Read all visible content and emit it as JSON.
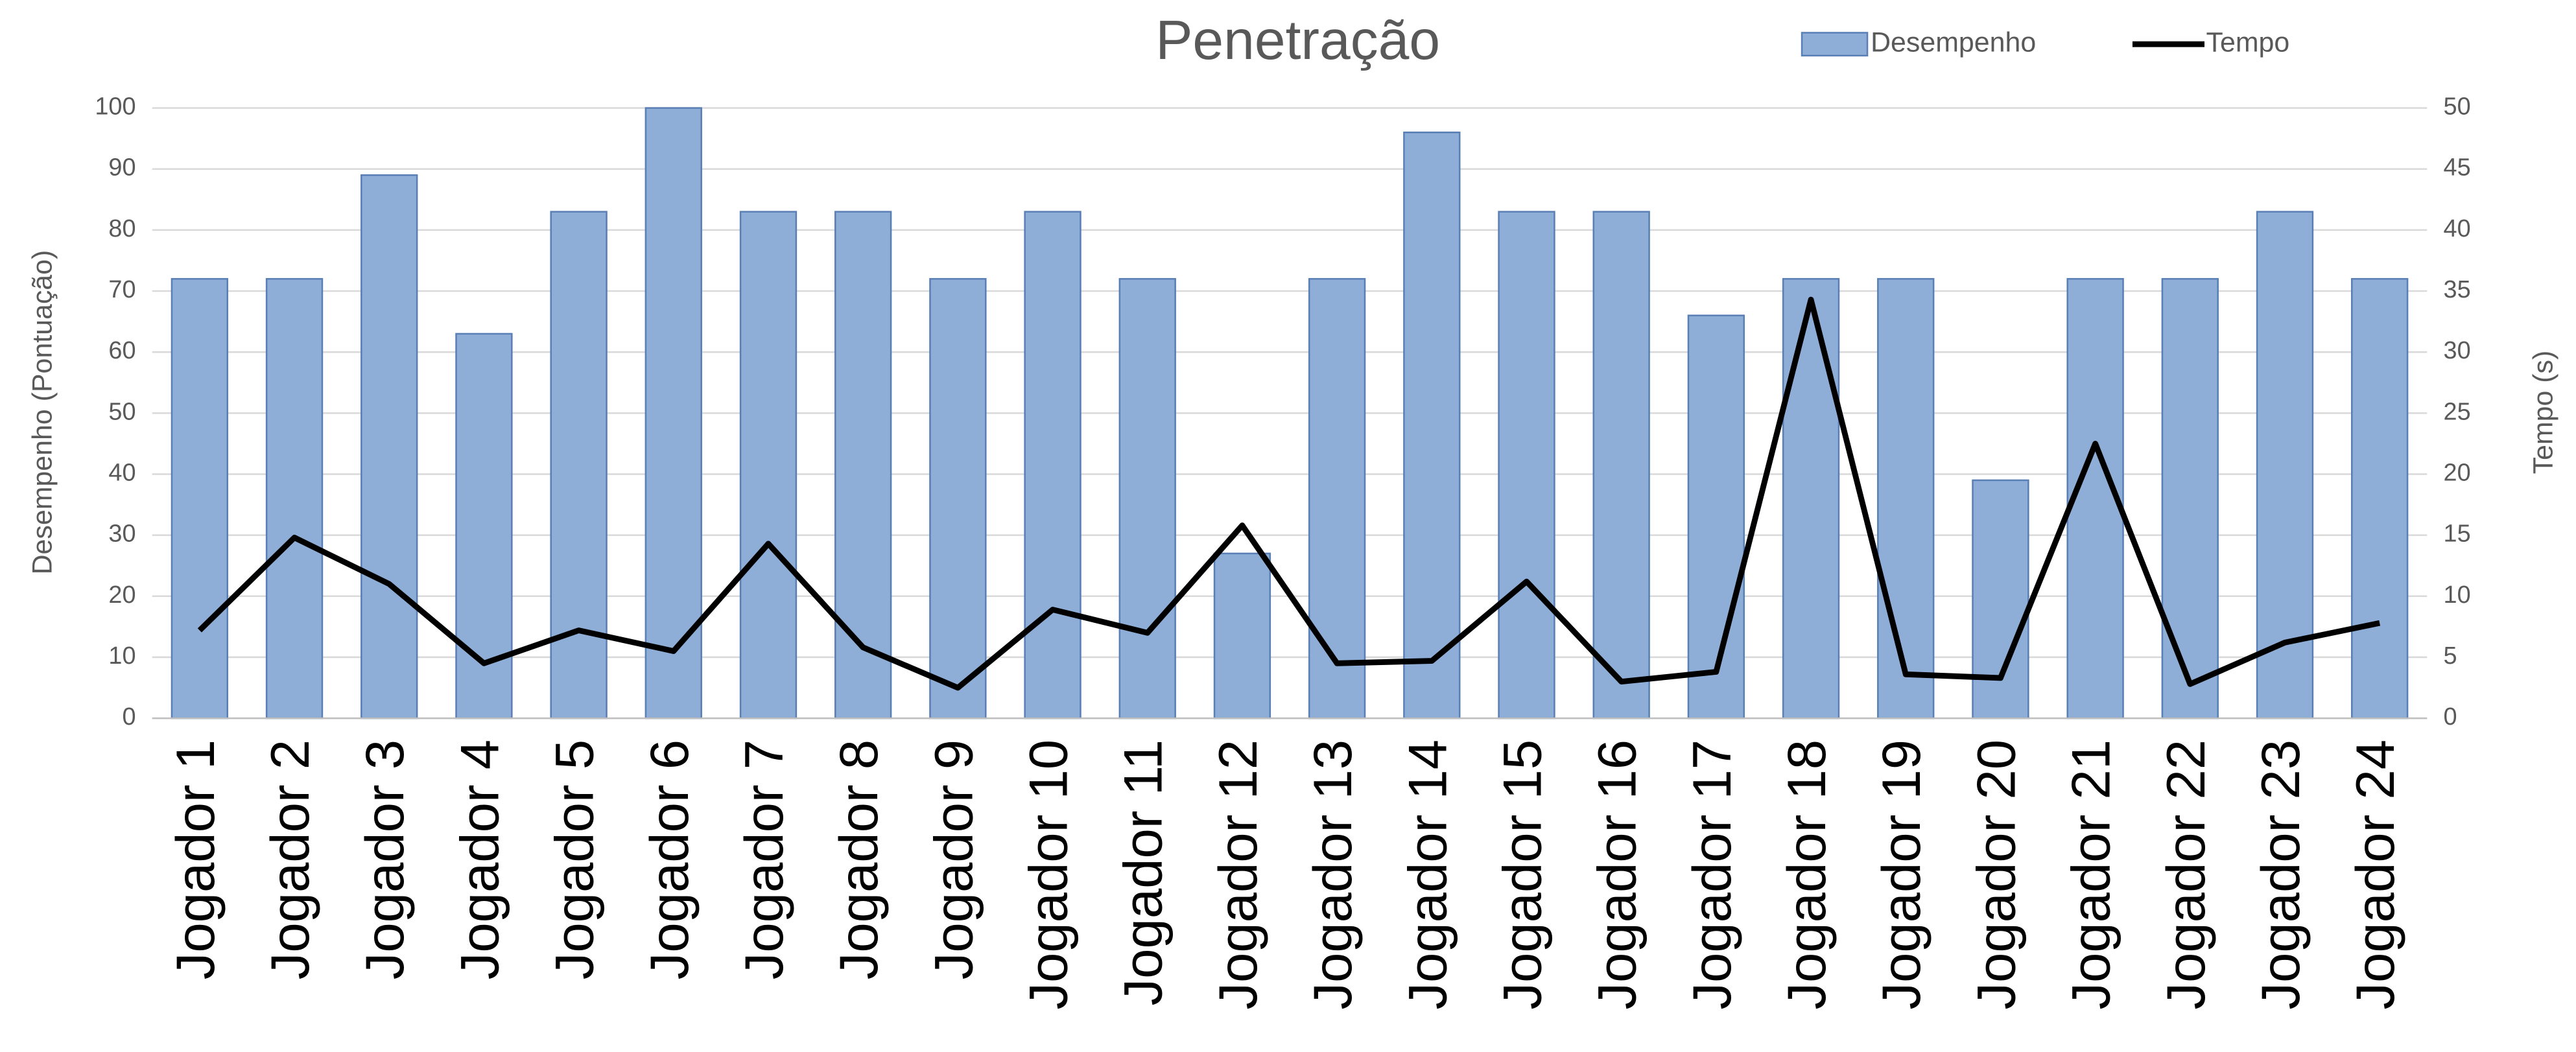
{
  "chart_data": {
    "type": "bar_line",
    "title": "Penetração",
    "y_label": "Desempenho (Pontuação)",
    "y2_label": "Tempo (s)",
    "categories": [
      "Jogador 1",
      "Jogador 2",
      "Jogador 3",
      "Jogador 4",
      "Jogador 5",
      "Jogador 6",
      "Jogador 7",
      "Jogador 8",
      "Jogador 9",
      "Jogador 10",
      "Jogador 11",
      "Jogador 12",
      "Jogador 13",
      "Jogador 14",
      "Jogador 15",
      "Jogador 16",
      "Jogador 17",
      "Jogador 18",
      "Jogador 19",
      "Jogador 20",
      "Jogador 21",
      "Jogador 22",
      "Jogador 23",
      "Jogador 24"
    ],
    "series": [
      {
        "name": "Desempenho",
        "type": "bar",
        "color": "#8eaed8",
        "values": [
          72,
          72,
          89,
          63,
          83,
          100,
          83,
          83,
          72,
          83,
          72,
          27,
          72,
          96,
          83,
          83,
          66,
          72,
          72,
          39,
          72,
          72,
          83,
          72
        ]
      },
      {
        "name": "Tempo",
        "type": "line",
        "axis": "y2",
        "color": "#000000",
        "values": [
          7.2,
          14.8,
          11,
          4.5,
          7.2,
          5.5,
          14.3,
          5.8,
          2.5,
          8.9,
          7,
          15.8,
          4.5,
          4.7,
          11.2,
          3,
          3.8,
          34.3,
          3.6,
          3.3,
          22.5,
          2.8,
          6.2,
          7.8
        ]
      }
    ],
    "ylim": [
      0,
      100
    ],
    "yticks": [
      0,
      10,
      20,
      30,
      40,
      50,
      60,
      70,
      80,
      90,
      100
    ],
    "y2lim": [
      0,
      50
    ],
    "y2ticks": [
      0,
      5,
      10,
      15,
      20,
      25,
      30,
      35,
      40,
      45,
      50
    ],
    "grid": true,
    "legend": "top-right"
  }
}
